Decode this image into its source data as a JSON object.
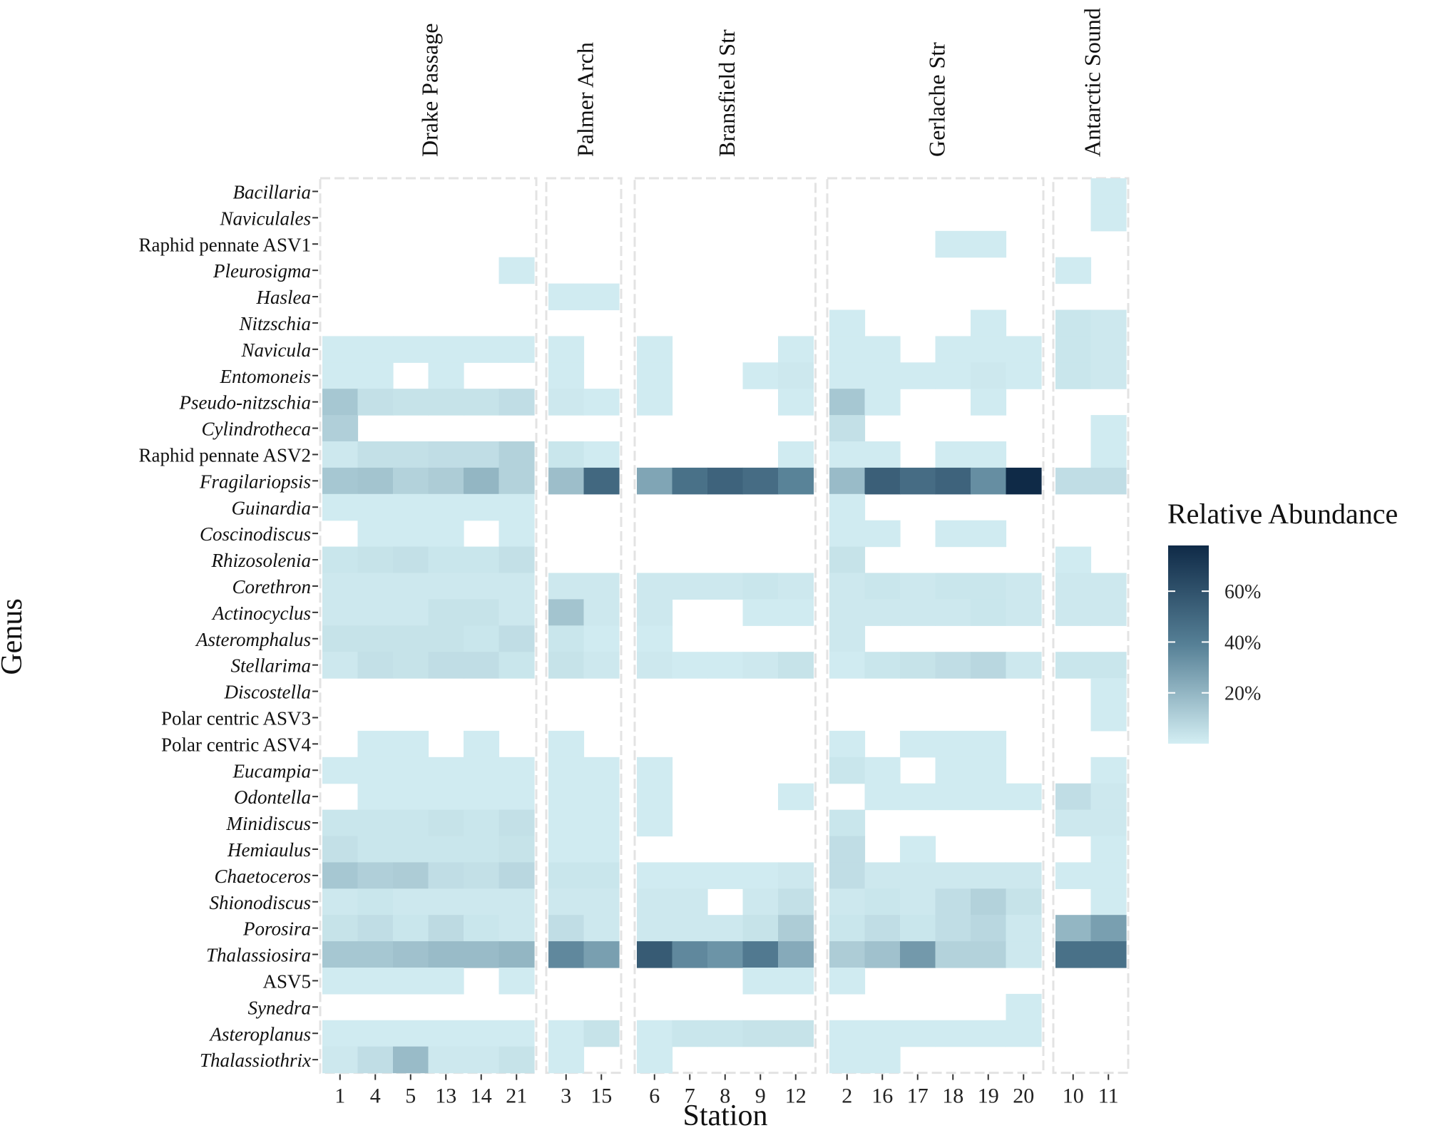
{
  "chart_data": {
    "type": "heatmap",
    "xlabel": "Station",
    "ylabel": "Genus",
    "legend": {
      "title": "Relative Abundance",
      "ticks": [
        "20%",
        "40%",
        "60%"
      ],
      "tick_values": [
        20,
        40,
        60
      ],
      "range": [
        0,
        78
      ],
      "placement": "right",
      "low_color": "#d3eef3",
      "high_color": "#0f2a47"
    },
    "genera": [
      {
        "name": "Bacillaria",
        "italic": true
      },
      {
        "name": "Naviculales",
        "italic": true
      },
      {
        "name": "Raphid pennate ASV1",
        "italic": false
      },
      {
        "name": "Pleurosigma",
        "italic": true
      },
      {
        "name": "Haslea",
        "italic": true
      },
      {
        "name": "Nitzschia",
        "italic": true
      },
      {
        "name": "Navicula",
        "italic": true
      },
      {
        "name": "Entomoneis",
        "italic": true
      },
      {
        "name": "Pseudo-nitzschia",
        "italic": true
      },
      {
        "name": "Cylindrotheca",
        "italic": true
      },
      {
        "name": "Raphid pennate ASV2",
        "italic": false
      },
      {
        "name": "Fragilariopsis",
        "italic": true
      },
      {
        "name": "Guinardia",
        "italic": true
      },
      {
        "name": "Coscinodiscus",
        "italic": true
      },
      {
        "name": "Rhizosolenia",
        "italic": true
      },
      {
        "name": "Corethron",
        "italic": true
      },
      {
        "name": "Actinocyclus",
        "italic": true
      },
      {
        "name": "Asteromphalus",
        "italic": true
      },
      {
        "name": "Stellarima",
        "italic": true
      },
      {
        "name": "Discostella",
        "italic": true
      },
      {
        "name": "Polar centric ASV3",
        "italic": false
      },
      {
        "name": "Polar centric ASV4",
        "italic": false
      },
      {
        "name": "Eucampia",
        "italic": true
      },
      {
        "name": "Odontella",
        "italic": true
      },
      {
        "name": "Minidiscus",
        "italic": true
      },
      {
        "name": "Hemiaulus",
        "italic": true
      },
      {
        "name": "Chaetoceros",
        "italic": true
      },
      {
        "name": "Shionodiscus",
        "italic": true
      },
      {
        "name": "Porosira",
        "italic": true
      },
      {
        "name": "Thalassiosira",
        "italic": true
      },
      {
        "name": "ASV5",
        "italic": false
      },
      {
        "name": "Synedra",
        "italic": true
      },
      {
        "name": "Asteroplanus",
        "italic": true
      },
      {
        "name": "Thalassiothrix",
        "italic": true
      }
    ],
    "facets": [
      {
        "name": "Drake Passage",
        "stations": [
          "1",
          "4",
          "5",
          "13",
          "14",
          "21"
        ],
        "values": [
          [
            0,
            0,
            0,
            0,
            0,
            0
          ],
          [
            0,
            0,
            0,
            0,
            0,
            0
          ],
          [
            0,
            0,
            0,
            0,
            0,
            0
          ],
          [
            0,
            0,
            0,
            0,
            0,
            1
          ],
          [
            0,
            0,
            0,
            0,
            0,
            0
          ],
          [
            0,
            0,
            0,
            0,
            0,
            0
          ],
          [
            1,
            1,
            1,
            1,
            1,
            1
          ],
          [
            1,
            1,
            0,
            1,
            0,
            0
          ],
          [
            14,
            5,
            4,
            4,
            4,
            6
          ],
          [
            11,
            0,
            0,
            0,
            0,
            0
          ],
          [
            2,
            5,
            5,
            6,
            6,
            10
          ],
          [
            14,
            15,
            10,
            12,
            20,
            10
          ],
          [
            1,
            1,
            1,
            1,
            1,
            1
          ],
          [
            0,
            1,
            1,
            1,
            0,
            1
          ],
          [
            3,
            4,
            5,
            3,
            3,
            5
          ],
          [
            2,
            2,
            2,
            2,
            2,
            2
          ],
          [
            2,
            2,
            2,
            4,
            4,
            2
          ],
          [
            4,
            4,
            4,
            4,
            3,
            6
          ],
          [
            2,
            5,
            4,
            6,
            6,
            3
          ],
          [
            0,
            0,
            0,
            0,
            0,
            0
          ],
          [
            0,
            0,
            0,
            0,
            0,
            0
          ],
          [
            0,
            1,
            1,
            0,
            1,
            0
          ],
          [
            1,
            1,
            1,
            1,
            1,
            1
          ],
          [
            0,
            1,
            1,
            1,
            1,
            1
          ],
          [
            3,
            3,
            3,
            4,
            3,
            5
          ],
          [
            5,
            3,
            3,
            3,
            3,
            4
          ],
          [
            14,
            11,
            12,
            6,
            5,
            8
          ],
          [
            2,
            3,
            2,
            2,
            2,
            2
          ],
          [
            4,
            6,
            3,
            7,
            3,
            2
          ],
          [
            14,
            14,
            16,
            18,
            18,
            20
          ],
          [
            1,
            1,
            1,
            1,
            0,
            1
          ],
          [
            0,
            0,
            0,
            0,
            0,
            0
          ],
          [
            1,
            1,
            1,
            1,
            1,
            1
          ],
          [
            2,
            6,
            18,
            2,
            2,
            4
          ]
        ]
      },
      {
        "name": "Palmer Arch",
        "stations": [
          "3",
          "15"
        ],
        "values": [
          [
            0,
            0
          ],
          [
            0,
            0
          ],
          [
            0,
            0
          ],
          [
            0,
            0
          ],
          [
            1,
            1
          ],
          [
            0,
            0
          ],
          [
            1,
            0
          ],
          [
            1,
            0
          ],
          [
            2,
            1
          ],
          [
            0,
            0
          ],
          [
            3,
            1
          ],
          [
            17,
            50
          ],
          [
            0,
            0
          ],
          [
            0,
            0
          ],
          [
            0,
            0
          ],
          [
            2,
            2
          ],
          [
            15,
            2
          ],
          [
            3,
            1
          ],
          [
            4,
            2
          ],
          [
            0,
            0
          ],
          [
            0,
            0
          ],
          [
            1,
            0
          ],
          [
            1,
            1
          ],
          [
            1,
            1
          ],
          [
            1,
            1
          ],
          [
            1,
            1
          ],
          [
            3,
            3
          ],
          [
            2,
            2
          ],
          [
            6,
            2
          ],
          [
            36,
            28
          ],
          [
            0,
            0
          ],
          [
            0,
            0
          ],
          [
            1,
            4
          ],
          [
            1,
            0
          ]
        ]
      },
      {
        "name": "Bransfield Str",
        "stations": [
          "6",
          "7",
          "8",
          "9",
          "12"
        ],
        "values": [
          [
            0,
            0,
            0,
            0,
            0
          ],
          [
            0,
            0,
            0,
            0,
            0
          ],
          [
            0,
            0,
            0,
            0,
            0
          ],
          [
            0,
            0,
            0,
            0,
            0
          ],
          [
            0,
            0,
            0,
            0,
            0
          ],
          [
            0,
            0,
            0,
            0,
            0
          ],
          [
            1,
            0,
            0,
            0,
            1
          ],
          [
            1,
            0,
            0,
            1,
            2
          ],
          [
            1,
            0,
            0,
            0,
            1
          ],
          [
            0,
            0,
            0,
            0,
            0
          ],
          [
            0,
            0,
            0,
            0,
            1
          ],
          [
            26,
            46,
            52,
            48,
            38
          ],
          [
            0,
            0,
            0,
            0,
            0
          ],
          [
            0,
            0,
            0,
            0,
            0
          ],
          [
            0,
            0,
            0,
            0,
            0
          ],
          [
            2,
            2,
            2,
            3,
            2
          ],
          [
            2,
            0,
            0,
            1,
            1
          ],
          [
            1,
            0,
            0,
            0,
            0
          ],
          [
            2,
            1,
            1,
            2,
            4
          ],
          [
            0,
            0,
            0,
            0,
            0
          ],
          [
            0,
            0,
            0,
            0,
            0
          ],
          [
            0,
            0,
            0,
            0,
            0
          ],
          [
            1,
            0,
            0,
            0,
            0
          ],
          [
            1,
            0,
            0,
            0,
            1
          ],
          [
            1,
            0,
            0,
            0,
            0
          ],
          [
            0,
            0,
            0,
            0,
            0
          ],
          [
            1,
            1,
            1,
            1,
            2
          ],
          [
            2,
            2,
            0,
            2,
            5
          ],
          [
            2,
            2,
            2,
            4,
            12
          ],
          [
            56,
            36,
            32,
            42,
            24
          ],
          [
            0,
            0,
            0,
            1,
            1
          ],
          [
            0,
            0,
            0,
            0,
            0
          ],
          [
            1,
            3,
            3,
            4,
            4
          ],
          [
            1,
            0,
            0,
            0,
            0
          ]
        ]
      },
      {
        "name": "Gerlache Str",
        "stations": [
          "2",
          "16",
          "17",
          "18",
          "19",
          "20"
        ],
        "values": [
          [
            0,
            0,
            0,
            0,
            0,
            0
          ],
          [
            0,
            0,
            0,
            0,
            0,
            0
          ],
          [
            0,
            0,
            0,
            1,
            1,
            0
          ],
          [
            0,
            0,
            0,
            0,
            0,
            0
          ],
          [
            0,
            0,
            0,
            0,
            0,
            0
          ],
          [
            1,
            0,
            0,
            0,
            1,
            0
          ],
          [
            1,
            1,
            0,
            1,
            1,
            1
          ],
          [
            1,
            1,
            1,
            1,
            2,
            1
          ],
          [
            14,
            1,
            0,
            0,
            1,
            0
          ],
          [
            5,
            0,
            0,
            0,
            0,
            0
          ],
          [
            1,
            1,
            0,
            1,
            1,
            0
          ],
          [
            18,
            54,
            48,
            52,
            34,
            78
          ],
          [
            1,
            0,
            0,
            0,
            0,
            0
          ],
          [
            1,
            1,
            0,
            1,
            1,
            0
          ],
          [
            4,
            0,
            0,
            0,
            0,
            0
          ],
          [
            2,
            3,
            2,
            3,
            3,
            2
          ],
          [
            2,
            2,
            2,
            2,
            3,
            2
          ],
          [
            2,
            0,
            0,
            0,
            0,
            0
          ],
          [
            1,
            3,
            4,
            6,
            8,
            2
          ],
          [
            0,
            0,
            0,
            0,
            0,
            0
          ],
          [
            0,
            0,
            0,
            0,
            0,
            0
          ],
          [
            1,
            0,
            1,
            1,
            1,
            0
          ],
          [
            3,
            1,
            0,
            1,
            1,
            0
          ],
          [
            0,
            1,
            1,
            1,
            1,
            1
          ],
          [
            3,
            0,
            0,
            0,
            0,
            0
          ],
          [
            6,
            0,
            1,
            0,
            0,
            0
          ],
          [
            6,
            2,
            2,
            2,
            2,
            2
          ],
          [
            2,
            3,
            2,
            6,
            10,
            4
          ],
          [
            3,
            6,
            3,
            6,
            8,
            2
          ],
          [
            12,
            16,
            30,
            10,
            10,
            2
          ],
          [
            1,
            0,
            0,
            0,
            0,
            0
          ],
          [
            0,
            0,
            0,
            0,
            0,
            1
          ],
          [
            1,
            1,
            1,
            1,
            1,
            1
          ],
          [
            1,
            1,
            0,
            0,
            0,
            0
          ]
        ]
      },
      {
        "name": "Antarctic Sound",
        "stations": [
          "10",
          "11"
        ],
        "values": [
          [
            0,
            1
          ],
          [
            0,
            1
          ],
          [
            0,
            0
          ],
          [
            1,
            0
          ],
          [
            0,
            0
          ],
          [
            3,
            2
          ],
          [
            3,
            2
          ],
          [
            3,
            2
          ],
          [
            0,
            0
          ],
          [
            0,
            1
          ],
          [
            0,
            1
          ],
          [
            6,
            6
          ],
          [
            0,
            0
          ],
          [
            0,
            0
          ],
          [
            1,
            0
          ],
          [
            2,
            2
          ],
          [
            2,
            2
          ],
          [
            0,
            0
          ],
          [
            3,
            3
          ],
          [
            0,
            1
          ],
          [
            0,
            1
          ],
          [
            0,
            0
          ],
          [
            0,
            1
          ],
          [
            6,
            2
          ],
          [
            2,
            2
          ],
          [
            0,
            1
          ],
          [
            1,
            1
          ],
          [
            0,
            1
          ],
          [
            20,
            28
          ],
          [
            46,
            46
          ],
          [
            0,
            0
          ],
          [
            0,
            0
          ],
          [
            0,
            0
          ],
          [
            0,
            0
          ]
        ]
      }
    ]
  }
}
